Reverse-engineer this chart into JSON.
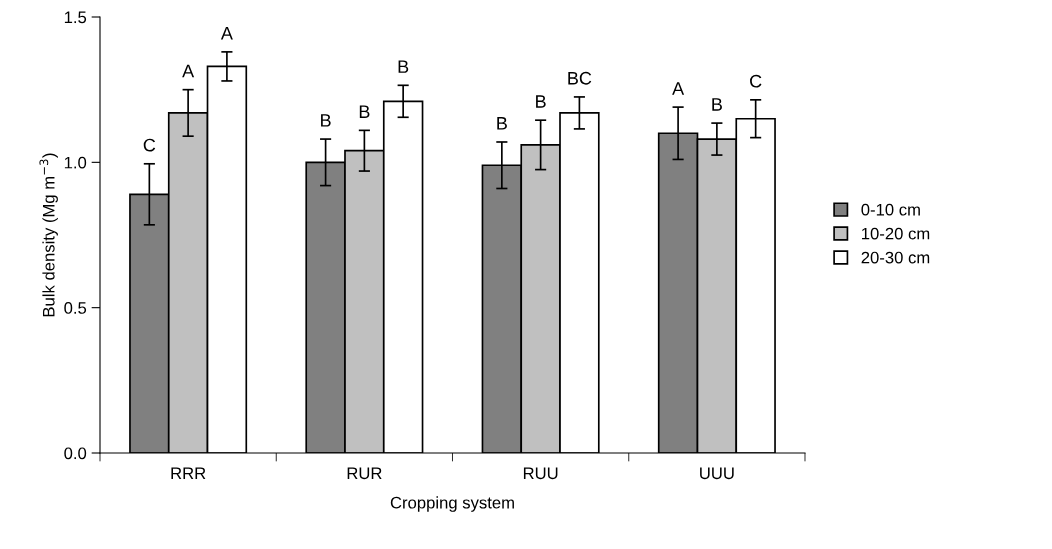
{
  "chart_data": {
    "type": "bar",
    "xlabel": "Cropping system",
    "ylabel": "Bulk density (Mg m$^{−3}$)",
    "categories": [
      "RRR",
      "RUR",
      "RUU",
      "UUU"
    ],
    "series": [
      {
        "name": "0-10 cm",
        "color": "#808080",
        "values": [
          0.89,
          1.0,
          0.99,
          1.1
        ],
        "errors": [
          0.105,
          0.08,
          0.08,
          0.09
        ],
        "value_labels": [
          "C",
          "B",
          "B",
          "A"
        ]
      },
      {
        "name": "10-20 cm",
        "color": "#c0c0c0",
        "values": [
          1.17,
          1.04,
          1.06,
          1.08
        ],
        "errors": [
          0.08,
          0.07,
          0.085,
          0.055
        ],
        "value_labels": [
          "A",
          "B",
          "B",
          "B"
        ]
      },
      {
        "name": "20-30 cm",
        "color": "#ffffff",
        "values": [
          1.33,
          1.21,
          1.17,
          1.15
        ],
        "errors": [
          0.05,
          0.055,
          0.055,
          0.065
        ],
        "value_labels": [
          "A",
          "B",
          "BC",
          "C"
        ]
      }
    ],
    "ylim": [
      0,
      1.5
    ],
    "yticks": [
      {
        "value": 0,
        "label": "0.0"
      },
      {
        "value": 0.5,
        "label": "0.5"
      },
      {
        "value": 1.0,
        "label": "1.0"
      },
      {
        "value": 1.5,
        "label": "1.5"
      }
    ],
    "legend": "right",
    "grid": false
  }
}
